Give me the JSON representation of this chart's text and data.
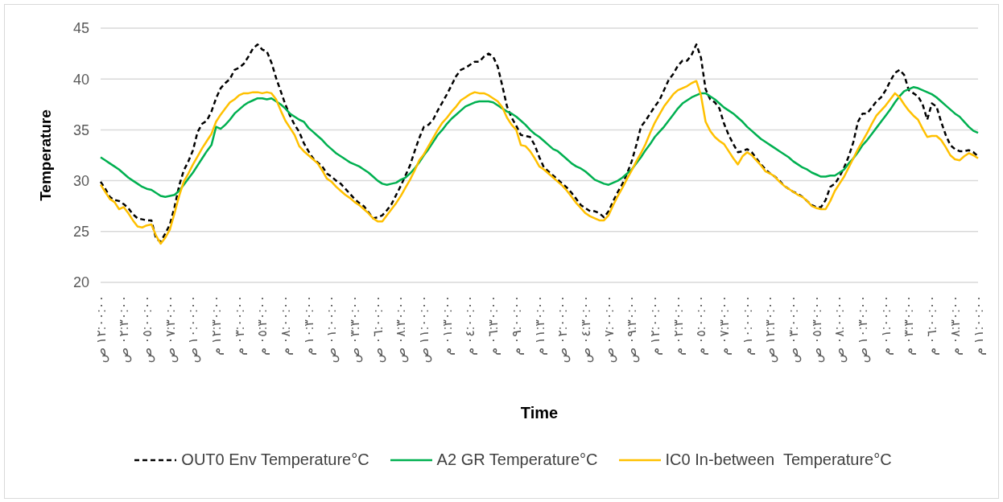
{
  "chart_data": {
    "type": "line",
    "xlabel": "Time",
    "ylabel": "Temperature",
    "ylim": [
      20,
      45
    ],
    "yticks": [
      20,
      25,
      30,
      35,
      40,
      45
    ],
    "categories": [
      "١٢:٠٠:٠٠ ص",
      null,
      null,
      null,
      null,
      "٠٢:٣٠:٠٠ ص",
      null,
      null,
      null,
      null,
      "٠٥:٠٠:٠٠ ص",
      null,
      null,
      null,
      null,
      "٠٧:٣٠:٠٠ ص",
      null,
      null,
      null,
      null,
      "١٠:٠٠:٠٠ ص",
      null,
      null,
      null,
      null,
      "١٢:٣٠:٠٠ م",
      null,
      null,
      null,
      null,
      "٠٣:٠٠:٠٠ م",
      null,
      null,
      null,
      null,
      "٠٥:٣٠:٠٠ م",
      null,
      null,
      null,
      null,
      "٠٨:٠٠:٠٠ م",
      null,
      null,
      null,
      null,
      "١٠:٣٠:٠٠ م",
      null,
      null,
      null,
      null,
      "٠١:٠٠:٠٠ ص",
      null,
      null,
      null,
      null,
      "٠٣:٣٠:٠٠ ص",
      null,
      null,
      null,
      null,
      "٠٦:٠٠:٠٠ ص",
      null,
      null,
      null,
      null,
      "٠٨:٣٠:٠٠ ص",
      null,
      null,
      null,
      null,
      "١١:٠٠:٠٠ ص",
      null,
      null,
      null,
      null,
      "٠١:٣٠:٠٠ م",
      null,
      null,
      null,
      null,
      "٠٤:٠٠:٠٠ م",
      null,
      null,
      null,
      null,
      "٠٦:٣٠:٠٠ م",
      null,
      null,
      null,
      null,
      "٠٩:٠٠:٠٠ م",
      null,
      null,
      null,
      null,
      "١١:٣٠:٠٠ م",
      null,
      null,
      null,
      null,
      "٠٢:٠٠:٠٠ ص",
      null,
      null,
      null,
      null,
      "٠٤:٣٠:٠٠ ص",
      null,
      null,
      null,
      null,
      "٠٧:٠٠:٠٠ ص",
      null,
      null,
      null,
      null,
      "٠٩:٣٠:٠٠ ص",
      null,
      null,
      null,
      null,
      "١٢:٠٠:٠٠ م",
      null,
      null,
      null,
      null,
      "٠٢:٣٠:٠٠ م",
      null,
      null,
      null,
      null,
      "٠٥:٠٠:٠٠ م",
      null,
      null,
      null,
      null,
      "٠٧:٣٠:٠٠ م",
      null,
      null,
      null,
      null,
      "١٠:٠٠:٠٠ م",
      null,
      null,
      null,
      null,
      "١٢:٣٠:٠٠ ص",
      null,
      null,
      null,
      null,
      "٠٣:٠٠:٠٠ ص",
      null,
      null,
      null,
      null,
      "٠٥:٣٠:٠٠ ص",
      null,
      null,
      null,
      null,
      "٠٨:٠٠:٠٠ ص",
      null,
      null,
      null,
      null,
      "١٠:٣٠:٠٠ ص",
      null,
      null,
      null,
      null,
      "٠١:٠٠:٠٠ م",
      null,
      null,
      null,
      null,
      "٠٣:٣٠:٠٠ م",
      null,
      null,
      null,
      null,
      "٠٦:٠٠:٠٠ م",
      null,
      null,
      null,
      null,
      "٠٨:٣٠:٠٠ م",
      null,
      null,
      null,
      null,
      "١١:٠٠:٠٠ م"
    ],
    "grid": "y",
    "legend": "bottom",
    "marker": "none",
    "series": [
      {
        "name": "OUT0 Env Temperature°C",
        "color": "#000000",
        "line_style": "dashed",
        "values": [
          29.9,
          29.2,
          28.4,
          28.1,
          28.0,
          27.7,
          27.3,
          26.7,
          26.3,
          26.2,
          26.1,
          26.1,
          24.3,
          24.0,
          24.8,
          25.7,
          27.4,
          29.5,
          31.0,
          31.9,
          33.0,
          34.8,
          35.6,
          35.9,
          36.8,
          38.1,
          39.1,
          39.6,
          40.0,
          40.9,
          41.1,
          41.5,
          42.2,
          43.0,
          43.4,
          42.9,
          42.7,
          41.6,
          40.1,
          38.8,
          37.5,
          36.4,
          35.5,
          34.8,
          33.7,
          32.9,
          32.2,
          31.8,
          31.4,
          30.7,
          30.4,
          30.0,
          29.7,
          29.2,
          28.7,
          28.2,
          27.8,
          27.5,
          26.9,
          26.3,
          26.4,
          26.6,
          27.1,
          27.7,
          28.6,
          29.5,
          30.5,
          31.5,
          32.9,
          34.2,
          35.3,
          35.5,
          36.0,
          36.9,
          37.7,
          38.5,
          39.4,
          40.3,
          40.9,
          41.1,
          41.4,
          41.7,
          41.7,
          42.2,
          42.5,
          42.2,
          41.2,
          39.3,
          37.3,
          36.2,
          35.4,
          34.5,
          34.4,
          34.3,
          33.5,
          32.3,
          31.3,
          30.9,
          30.5,
          30.1,
          29.7,
          29.3,
          28.8,
          28.2,
          27.6,
          27.3,
          27.0,
          27.0,
          26.8,
          26.4,
          27.0,
          28.0,
          28.9,
          29.7,
          30.7,
          31.9,
          33.5,
          35.3,
          35.9,
          36.6,
          37.3,
          37.9,
          38.9,
          39.9,
          40.5,
          41.3,
          41.8,
          41.8,
          42.4,
          43.4,
          42.1,
          39.0,
          38.0,
          37.7,
          37.1,
          35.6,
          34.5,
          33.6,
          32.8,
          32.9,
          33.1,
          32.8,
          32.2,
          31.6,
          31.1,
          30.7,
          30.4,
          30.0,
          29.5,
          29.2,
          28.9,
          28.7,
          28.4,
          28.0,
          27.6,
          27.4,
          27.4,
          28.1,
          29.4,
          29.7,
          30.4,
          31.3,
          32.4,
          33.8,
          35.8,
          36.6,
          36.6,
          37.2,
          37.8,
          38.2,
          38.9,
          39.8,
          40.6,
          40.9,
          40.4,
          38.9,
          38.6,
          38.3,
          37.5,
          36.0,
          37.6,
          37.3,
          35.8,
          34.5,
          33.5,
          33.1,
          32.9,
          32.9,
          33.0,
          32.8,
          32.4
        ]
      },
      {
        "name": "A2 GR Temperature°C",
        "color": "#00b050",
        "line_style": "solid",
        "values": [
          32.3,
          32.0,
          31.7,
          31.4,
          31.1,
          30.7,
          30.3,
          30.0,
          29.7,
          29.4,
          29.2,
          29.1,
          28.8,
          28.5,
          28.4,
          28.5,
          28.6,
          29.0,
          29.6,
          30.2,
          30.8,
          31.5,
          32.2,
          32.9,
          33.5,
          35.3,
          35.1,
          35.5,
          36.0,
          36.6,
          37.0,
          37.4,
          37.7,
          37.9,
          38.1,
          38.1,
          38.0,
          38.1,
          37.8,
          37.5,
          37.1,
          36.6,
          36.3,
          36.0,
          35.8,
          35.2,
          34.8,
          34.4,
          34.0,
          33.5,
          33.1,
          32.7,
          32.4,
          32.1,
          31.8,
          31.6,
          31.4,
          31.1,
          30.8,
          30.4,
          30.0,
          29.7,
          29.6,
          29.7,
          29.8,
          30.1,
          30.3,
          30.7,
          31.2,
          31.8,
          32.5,
          33.1,
          33.8,
          34.5,
          35.0,
          35.6,
          36.1,
          36.5,
          36.9,
          37.3,
          37.5,
          37.7,
          37.8,
          37.8,
          37.8,
          37.7,
          37.4,
          37.1,
          36.8,
          36.6,
          36.3,
          35.9,
          35.5,
          35.0,
          34.6,
          34.3,
          33.9,
          33.5,
          33.1,
          32.9,
          32.5,
          32.1,
          31.7,
          31.4,
          31.2,
          30.9,
          30.5,
          30.1,
          29.9,
          29.7,
          29.6,
          29.8,
          30.0,
          30.3,
          30.7,
          31.1,
          31.7,
          32.3,
          33.0,
          33.6,
          34.3,
          34.8,
          35.3,
          35.9,
          36.5,
          37.1,
          37.6,
          37.9,
          38.2,
          38.4,
          38.6,
          38.6,
          38.3,
          38.0,
          37.6,
          37.2,
          36.9,
          36.6,
          36.2,
          35.8,
          35.3,
          34.9,
          34.5,
          34.1,
          33.8,
          33.5,
          33.2,
          32.9,
          32.6,
          32.3,
          31.9,
          31.6,
          31.3,
          31.1,
          30.8,
          30.6,
          30.4,
          30.4,
          30.5,
          30.5,
          30.8,
          31.1,
          31.7,
          32.2,
          32.8,
          33.5,
          34.0,
          34.6,
          35.2,
          35.8,
          36.4,
          37.0,
          37.7,
          38.3,
          38.8,
          39.0,
          39.2,
          39.1,
          38.9,
          38.7,
          38.5,
          38.2,
          37.8,
          37.4,
          37.0,
          36.6,
          36.3,
          35.8,
          35.3,
          34.9,
          34.7
        ]
      },
      {
        "name": "IC0 In-between  Temperature°C",
        "color": "#ffc000",
        "line_style": "solid",
        "values": [
          29.6,
          28.9,
          28.2,
          27.9,
          27.2,
          27.4,
          26.8,
          26.1,
          25.5,
          25.4,
          25.6,
          25.7,
          24.6,
          23.8,
          24.4,
          25.2,
          26.8,
          28.5,
          29.9,
          30.7,
          31.6,
          32.4,
          33.2,
          33.9,
          34.6,
          35.8,
          36.5,
          37.1,
          37.7,
          38.0,
          38.4,
          38.6,
          38.6,
          38.7,
          38.7,
          38.6,
          38.7,
          38.6,
          38.0,
          36.9,
          35.9,
          35.2,
          34.5,
          33.4,
          32.9,
          32.5,
          32.1,
          31.7,
          31.0,
          30.2,
          29.9,
          29.4,
          29.0,
          28.6,
          28.3,
          27.9,
          27.6,
          27.2,
          26.8,
          26.3,
          26.0,
          26.0,
          26.6,
          27.2,
          27.8,
          28.5,
          29.3,
          30.1,
          31.0,
          32.0,
          32.6,
          33.4,
          34.2,
          35.0,
          35.7,
          36.2,
          36.8,
          37.3,
          37.9,
          38.2,
          38.5,
          38.7,
          38.6,
          38.6,
          38.4,
          38.1,
          37.8,
          37.2,
          36.2,
          35.5,
          35.0,
          33.5,
          33.4,
          32.9,
          32.2,
          31.4,
          31.1,
          30.7,
          30.3,
          29.9,
          29.5,
          29.0,
          28.4,
          27.8,
          27.3,
          26.8,
          26.5,
          26.3,
          26.1,
          26.1,
          26.6,
          27.6,
          28.5,
          29.3,
          30.2,
          31.0,
          31.9,
          32.7,
          33.6,
          34.7,
          35.7,
          36.5,
          37.3,
          37.9,
          38.5,
          38.9,
          39.1,
          39.3,
          39.6,
          39.8,
          38.4,
          35.8,
          34.9,
          34.3,
          33.9,
          33.6,
          32.9,
          32.2,
          31.6,
          32.4,
          32.8,
          32.5,
          32.0,
          31.5,
          30.9,
          30.7,
          30.4,
          29.9,
          29.5,
          29.2,
          28.9,
          28.6,
          28.4,
          28.0,
          27.5,
          27.3,
          27.2,
          27.2,
          28.0,
          29.0,
          29.7,
          30.4,
          31.3,
          32.2,
          33.1,
          33.9,
          34.7,
          35.6,
          36.4,
          36.9,
          37.4,
          38.0,
          38.6,
          38.2,
          37.5,
          36.9,
          36.4,
          36.0,
          35.1,
          34.3,
          34.4,
          34.4,
          34.0,
          33.3,
          32.5,
          32.1,
          32.0,
          32.4,
          32.7,
          32.5,
          32.2
        ]
      }
    ]
  }
}
